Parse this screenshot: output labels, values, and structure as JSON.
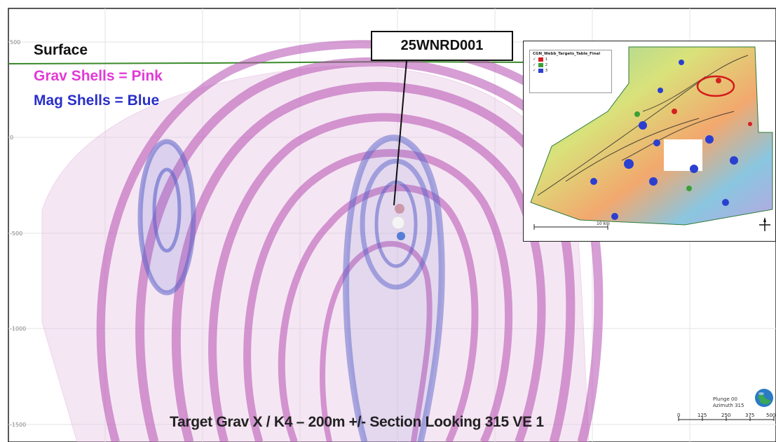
{
  "legend": {
    "surface": "Surface",
    "grav": "Grav Shells = Pink",
    "mag": "Mag Shells = Blue"
  },
  "drillhole": {
    "id": "25WNRD001"
  },
  "elevations": [
    "500",
    "0",
    "-500",
    "-1000",
    "-1500"
  ],
  "caption": "Target Grav X / K4 – 200m +/- Section Looking 315 VE 1",
  "orientation": {
    "plunge": "Plunge 00",
    "azimuth": "Azimuth 315"
  },
  "scale": [
    "0",
    "125",
    "250",
    "375",
    "500"
  ],
  "inset": {
    "legend_title": "CGN_Webb_Targets_Table_Final",
    "legend_items": [
      "1",
      "2",
      "3"
    ],
    "scale_label": "10 km"
  },
  "colors": {
    "grav": "#c25ac0",
    "mag": "#5c63c9",
    "surface_line": "#3a8a2a"
  },
  "icons": [
    "north-arrow-icon",
    "globe-icon"
  ]
}
